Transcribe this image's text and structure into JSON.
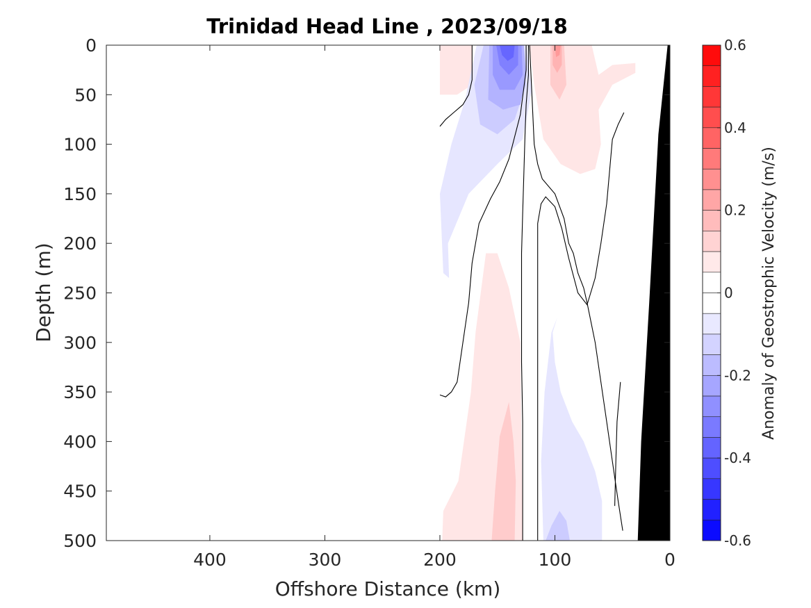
{
  "chart_data": {
    "type": "heatmap",
    "title": "Trinidad Head Line , 2023/09/18",
    "xlabel": "Offshore Distance (km)",
    "ylabel": "Depth (m)",
    "xlim": [
      490,
      0
    ],
    "ylim": [
      0,
      500
    ],
    "x_reversed": true,
    "y_reversed": true,
    "x_ticks": [
      400,
      300,
      200,
      100,
      0
    ],
    "y_ticks": [
      0,
      50,
      100,
      150,
      200,
      250,
      300,
      350,
      400,
      450,
      500
    ],
    "colorbar": {
      "label": "Anomaly of Geostrophic Velocity (m/s)",
      "range": [
        -0.6,
        0.6
      ],
      "step": 0.05,
      "ticks": [
        0.6,
        0.4,
        0.2,
        0,
        -0.2,
        -0.4,
        -0.6
      ]
    },
    "contour_fills": [
      {
        "level": 0.05,
        "color": "#ffe6e6",
        "points": [
          [
            192,
            0
          ],
          [
            200,
            0
          ],
          [
            200,
            45
          ],
          [
            192,
            45
          ]
        ]
      },
      {
        "level": 0.05,
        "color": "#ffe6e6",
        "points": [
          [
            122,
            0
          ],
          [
            68,
            0
          ],
          [
            62,
            30
          ],
          [
            50,
            20
          ],
          [
            30,
            18
          ],
          [
            30,
            28
          ],
          [
            50,
            40
          ],
          [
            62,
            65
          ],
          [
            60,
            100
          ],
          [
            65,
            125
          ],
          [
            78,
            130
          ],
          [
            95,
            120
          ],
          [
            110,
            95
          ],
          [
            118,
            40
          ]
        ]
      },
      {
        "level": 0.05,
        "color": "#ffe6e6",
        "points": [
          [
            200,
            0
          ],
          [
            172,
            0
          ],
          [
            172,
            40
          ],
          [
            185,
            50
          ],
          [
            200,
            50
          ]
        ]
      },
      {
        "level": 0.05,
        "color": "#ffe6e6",
        "points": [
          [
            160,
            210
          ],
          [
            150,
            210
          ],
          [
            140,
            245
          ],
          [
            130,
            300
          ],
          [
            128,
            500
          ],
          [
            198,
            500
          ],
          [
            197,
            470
          ],
          [
            184,
            440
          ],
          [
            173,
            350
          ],
          [
            169,
            290
          ]
        ]
      },
      {
        "level": 0.1,
        "color": "#ffcccc",
        "points": [
          [
            140,
            360
          ],
          [
            148,
            395
          ],
          [
            152,
            450
          ],
          [
            155,
            500
          ],
          [
            135,
            500
          ],
          [
            134,
            440
          ],
          [
            136,
            400
          ]
        ]
      },
      {
        "level": 0.1,
        "color": "#ffcccc",
        "points": [
          [
            104,
            0
          ],
          [
            92,
            0
          ],
          [
            90,
            40
          ],
          [
            96,
            55
          ],
          [
            104,
            40
          ]
        ]
      },
      {
        "level": -0.05,
        "color": "#e6e6ff",
        "points": [
          [
            168,
            0
          ],
          [
            125,
            0
          ],
          [
            120,
            45
          ],
          [
            128,
            95
          ],
          [
            150,
            120
          ],
          [
            175,
            150
          ],
          [
            193,
            200
          ],
          [
            192,
            235
          ],
          [
            197,
            230
          ],
          [
            200,
            150
          ],
          [
            190,
            100
          ],
          [
            178,
            55
          ]
        ]
      },
      {
        "level": -0.05,
        "color": "#e6e6ff",
        "points": [
          [
            98,
            275
          ],
          [
            102,
            290
          ],
          [
            100,
            320
          ],
          [
            95,
            350
          ],
          [
            85,
            380
          ],
          [
            75,
            400
          ],
          [
            65,
            430
          ],
          [
            59,
            460
          ],
          [
            59,
            500
          ],
          [
            110,
            500
          ],
          [
            112,
            420
          ],
          [
            109,
            350
          ],
          [
            103,
            290
          ]
        ]
      },
      {
        "level": -0.1,
        "color": "#ccccff",
        "points": [
          [
            162,
            0
          ],
          [
            130,
            0
          ],
          [
            125,
            40
          ],
          [
            135,
            75
          ],
          [
            150,
            90
          ],
          [
            165,
            80
          ],
          [
            170,
            40
          ]
        ]
      },
      {
        "level": -0.1,
        "color": "#ccccff",
        "points": [
          [
            96,
            470
          ],
          [
            90,
            480
          ],
          [
            87,
            500
          ],
          [
            108,
            500
          ],
          [
            103,
            485
          ]
        ]
      },
      {
        "level": -0.15,
        "color": "#b3b3ff",
        "points": [
          [
            157,
            0
          ],
          [
            127,
            0
          ],
          [
            125,
            30
          ],
          [
            130,
            60
          ],
          [
            145,
            65
          ],
          [
            158,
            55
          ]
        ]
      },
      {
        "level": -0.2,
        "color": "#9999ff",
        "points": [
          [
            154,
            0
          ],
          [
            129,
            0
          ],
          [
            128,
            30
          ],
          [
            135,
            45
          ],
          [
            148,
            45
          ],
          [
            154,
            30
          ]
        ]
      },
      {
        "level": -0.25,
        "color": "#8080ff",
        "points": [
          [
            151,
            0
          ],
          [
            132,
            0
          ],
          [
            132,
            20
          ],
          [
            140,
            30
          ],
          [
            148,
            20
          ]
        ]
      },
      {
        "level": -0.3,
        "color": "#6666ff",
        "points": [
          [
            148,
            0
          ],
          [
            135,
            0
          ],
          [
            136,
            12
          ],
          [
            141,
            16
          ],
          [
            146,
            10
          ]
        ]
      },
      {
        "level": 0.15,
        "color": "#ffb3b3",
        "points": [
          [
            102,
            0
          ],
          [
            94,
            0
          ],
          [
            94,
            20
          ],
          [
            98,
            28
          ],
          [
            102,
            20
          ]
        ]
      },
      {
        "level": 0.2,
        "color": "#ff9999",
        "points": [
          [
            100,
            0
          ],
          [
            95,
            0
          ],
          [
            96,
            10
          ],
          [
            99,
            12
          ]
        ]
      }
    ],
    "zero_contours": [
      [
        [
          200,
          82
        ],
        [
          195,
          75
        ],
        [
          188,
          68
        ],
        [
          180,
          60
        ],
        [
          175,
          50
        ],
        [
          172,
          35
        ],
        [
          172,
          0
        ]
      ],
      [
        [
          122,
          0
        ],
        [
          120,
          50
        ],
        [
          118,
          100
        ],
        [
          115,
          120
        ],
        [
          111,
          135
        ],
        [
          100,
          150
        ],
        [
          92,
          175
        ],
        [
          88,
          200
        ],
        [
          84,
          210
        ],
        [
          80,
          230
        ],
        [
          75,
          245
        ],
        [
          72,
          260
        ],
        [
          65,
          300
        ],
        [
          60,
          340
        ],
        [
          55,
          380
        ],
        [
          50,
          420
        ],
        [
          45,
          460
        ],
        [
          41,
          490
        ]
      ],
      [
        [
          123,
          0
        ],
        [
          123,
          30
        ],
        [
          125,
          60
        ],
        [
          126,
          90
        ],
        [
          127,
          130
        ],
        [
          128,
          170
        ],
        [
          129,
          210
        ],
        [
          129,
          260
        ],
        [
          129,
          320
        ],
        [
          128,
          380
        ],
        [
          128,
          440
        ],
        [
          128,
          500
        ]
      ],
      [
        [
          200,
          353
        ],
        [
          195,
          355
        ],
        [
          190,
          350
        ],
        [
          185,
          340
        ],
        [
          180,
          300
        ],
        [
          175,
          260
        ],
        [
          172,
          220
        ],
        [
          166,
          180
        ],
        [
          156,
          155
        ],
        [
          148,
          138
        ],
        [
          140,
          115
        ],
        [
          130,
          70
        ],
        [
          125,
          25
        ],
        [
          125,
          0
        ]
      ],
      [
        [
          115,
          500
        ],
        [
          115,
          450
        ],
        [
          115,
          350
        ],
        [
          115,
          250
        ],
        [
          115,
          180
        ],
        [
          112,
          160
        ],
        [
          108,
          153
        ],
        [
          100,
          163
        ],
        [
          94,
          185
        ],
        [
          88,
          215
        ],
        [
          80,
          250
        ],
        [
          72,
          262
        ],
        [
          65,
          235
        ],
        [
          60,
          200
        ],
        [
          55,
          160
        ],
        [
          50,
          95
        ],
        [
          45,
          80
        ],
        [
          40,
          68
        ]
      ],
      [
        [
          48,
          465
        ],
        [
          47,
          420
        ],
        [
          46,
          380
        ],
        [
          43,
          340
        ]
      ]
    ],
    "seafloor": [
      [
        0,
        0
      ],
      [
        2,
        0
      ],
      [
        10,
        90
      ],
      [
        18,
        260
      ],
      [
        25,
        400
      ],
      [
        28,
        500
      ],
      [
        0,
        500
      ]
    ]
  }
}
